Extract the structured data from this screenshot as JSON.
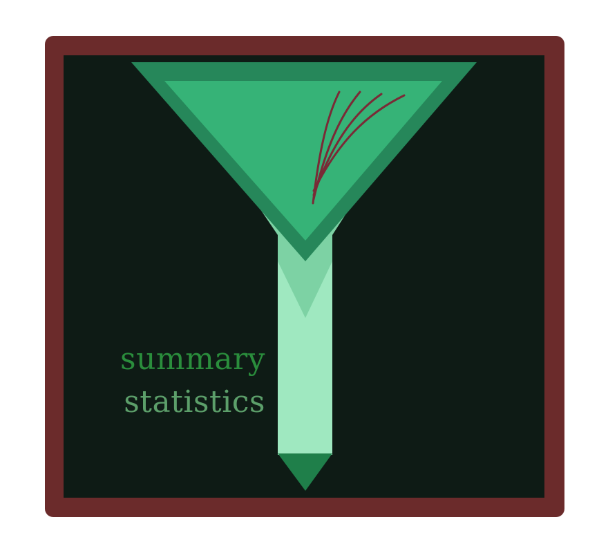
{
  "logo": {
    "text_line1": "summary",
    "text_line2": "statistics",
    "colors": {
      "frame": "#6b2b2b",
      "background": "#0e1b15",
      "funnel_outer": "#26875a",
      "funnel_inner": "#36b377",
      "funnel_lower_outer": "#7dd2a4",
      "funnel_lower_inner": "#6bc395",
      "stem": "#9fe8c0",
      "stem_tip": "#1f7f4a",
      "curves": "#7a2a36",
      "text_line1": "#2a8d3c",
      "text_line2": "#5c9f6a"
    }
  }
}
